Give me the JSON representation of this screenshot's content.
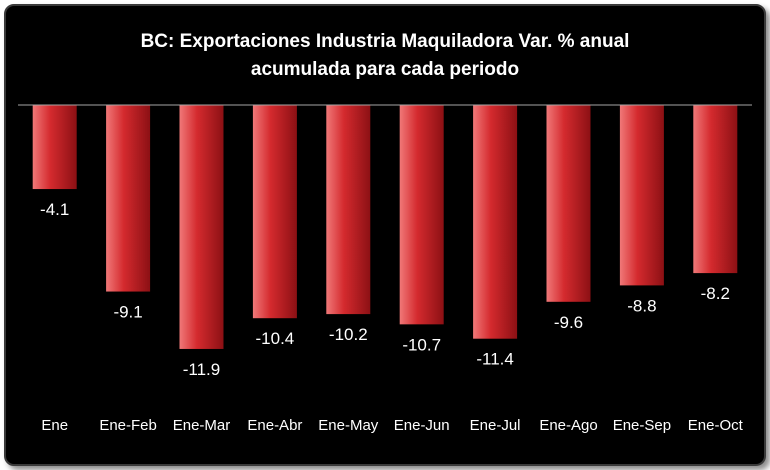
{
  "chart_data": {
    "type": "bar",
    "title": "BC: Exportaciones Industria Maquiladora Var. % anual acumulada para cada periodo",
    "title_lines": [
      "BC: Exportaciones Industria Maquiladora Var. % anual",
      "acumulada para cada periodo"
    ],
    "categories": [
      "Ene",
      "Ene-Feb",
      "Ene-Mar",
      "Ene-Abr",
      "Ene-May",
      "Ene-Jun",
      "Ene-Jul",
      "Ene-Ago",
      "Ene-Sep",
      "Ene-Oct"
    ],
    "values": [
      -4.1,
      -9.1,
      -11.9,
      -10.4,
      -10.2,
      -10.7,
      -11.4,
      -9.6,
      -8.8,
      -8.2
    ],
    "data_labels": [
      "-4.1",
      "-9.1",
      "-11.9",
      "-10.4",
      "-10.2",
      "-10.7",
      "-11.4",
      "-9.6",
      "-8.8",
      "-8.2"
    ],
    "xlabel": "",
    "ylabel": "",
    "ylim": [
      -12,
      0
    ],
    "grid": false,
    "legend": "none",
    "colors": {
      "background": "#000000",
      "bar_light": "#f07878",
      "bar_mid": "#d42a2e",
      "bar_dark": "#8c1014",
      "text": "#ffffff",
      "axis": "#a6a6a6"
    }
  }
}
